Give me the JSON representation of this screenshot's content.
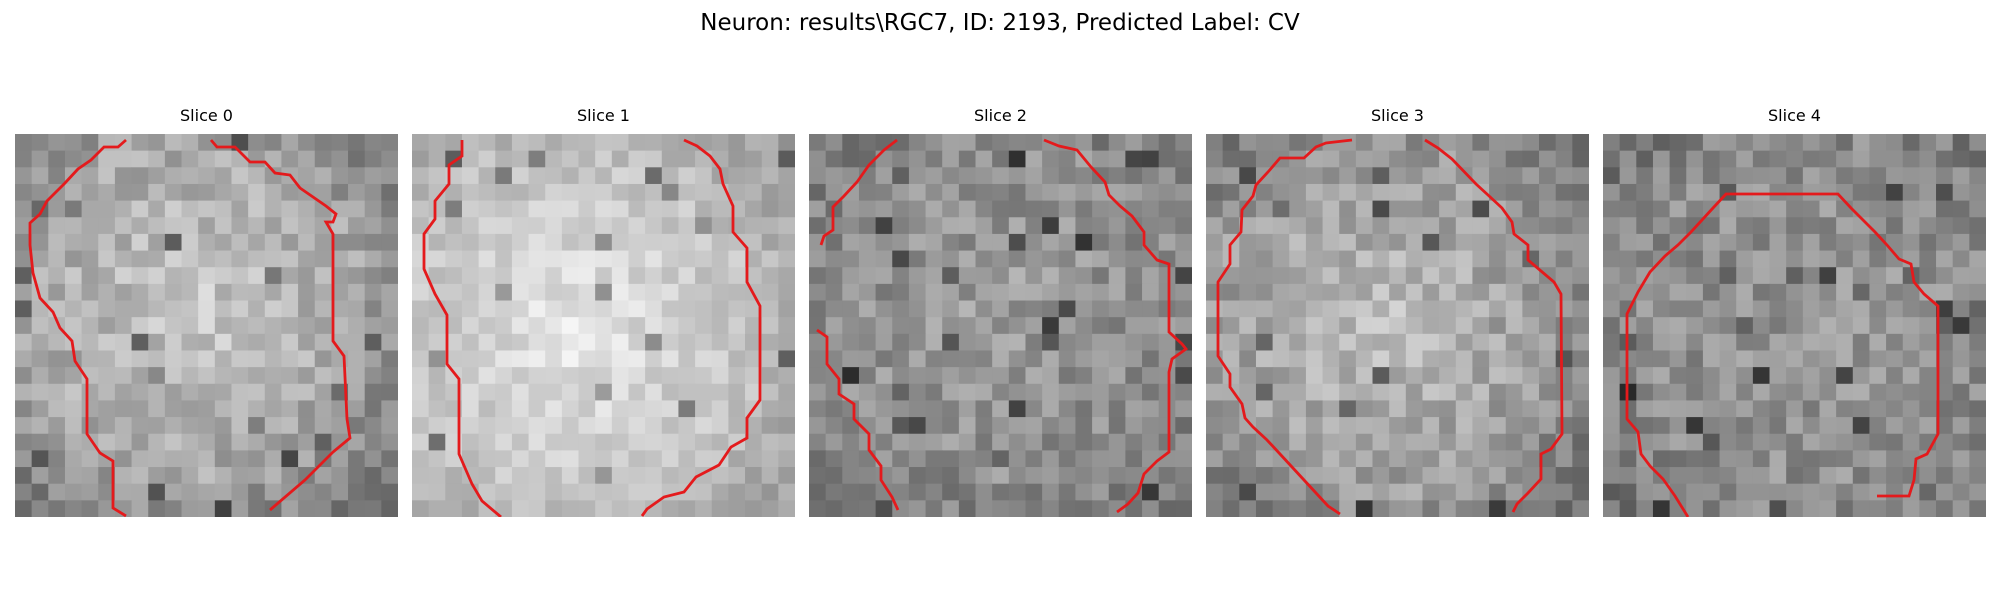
{
  "figure": {
    "title": "Neuron: results\\RGC7, ID: 2193, Predicted Label: CV",
    "outline_color": "#e41a1c"
  },
  "panels": [
    {
      "title": "Slice 0"
    },
    {
      "title": "Slice 1"
    },
    {
      "title": "Slice 2"
    },
    {
      "title": "Slice 3"
    },
    {
      "title": "Slice 4"
    }
  ]
}
